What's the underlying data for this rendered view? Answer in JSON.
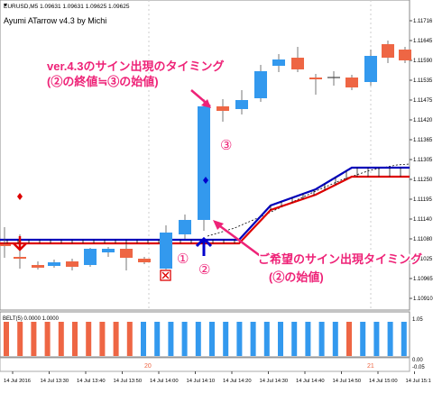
{
  "header": {
    "symbol_line": "EURUSD,M5  1.09631 1.09631 1.09625 1.09625",
    "indicator_name": "Ayumi ATarrow v4.3 by Michi"
  },
  "price_axis": {
    "labels": [
      "1.11716",
      "1.11645",
      "1.11590",
      "1.11535",
      "1.11475",
      "1.11420",
      "1.11365",
      "1.11305",
      "1.11250",
      "1.11195",
      "1.11140",
      "1.11080",
      "1.11025",
      "1.10965",
      "1.10910"
    ]
  },
  "time_axis": {
    "labels": [
      "14 Jul 2016",
      "14 Jul 13:30",
      "14 Jul 13:40",
      "14 Jul 13:50",
      "14 Jul 14:00",
      "14 Jul 14:10",
      "14 Jul 14:20",
      "14 Jul 14:30",
      "14 Jul 14:40",
      "14 Jul 14:50",
      "14 Jul 15:00",
      "14 Jul 15:1"
    ]
  },
  "annotations": {
    "top_label_line1": "ver.4.3のサイン出現のタイミング",
    "top_label_line2": "(②の終値≒③の始値)",
    "bottom_label_line1": "ご希望のサイン出現タイミング",
    "bottom_label_line2": "(②の始値)",
    "marker_1": "①",
    "marker_2": "②",
    "marker_3": "③"
  },
  "subwindow": {
    "label": "BELT(5) 0.0000 1.0000",
    "scale": [
      "1.05",
      "0.00",
      "-0.05"
    ],
    "period_markers": [
      "20",
      "21"
    ]
  },
  "colors": {
    "bull": "#3399ee",
    "bear": "#ee6644",
    "accent_pink": "#ee2277",
    "arrow_red": "#dd0000",
    "arrow_blue": "#0000cc",
    "line_blue": "#0000bb",
    "line_red": "#dd0000"
  }
}
